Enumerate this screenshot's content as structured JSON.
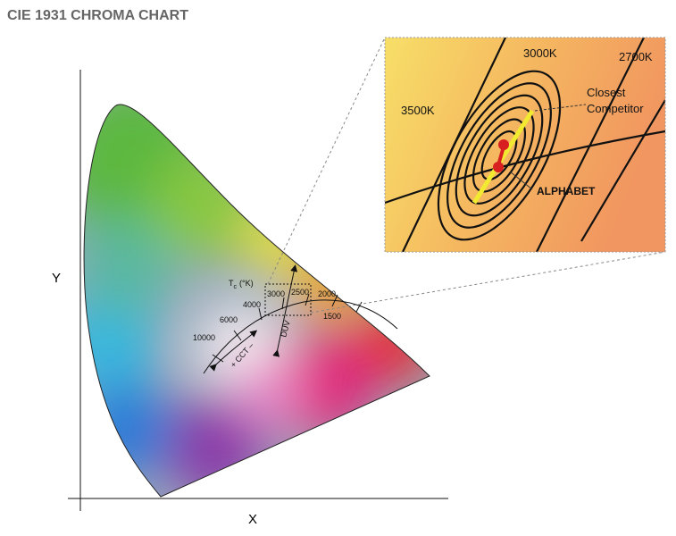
{
  "header": {
    "title": "CIE 1931 CHROMA CHART"
  },
  "axes": {
    "y_label": "Y",
    "x_label": "X"
  },
  "locus": {
    "temperature_label": {
      "main": "T",
      "sub": "c",
      "unit": "(°K)"
    },
    "temperatures": [
      "10000",
      "6000",
      "4000",
      "3000",
      "2500",
      "2000",
      "1500"
    ],
    "cct_arrow": "+ CCT –",
    "duv_arrow": "DUV"
  },
  "inset": {
    "isotherms": [
      "3000K",
      "2700K",
      "3500K"
    ],
    "competitor": [
      "Closest",
      "Competitor"
    ],
    "product": "ALPHABET"
  }
}
